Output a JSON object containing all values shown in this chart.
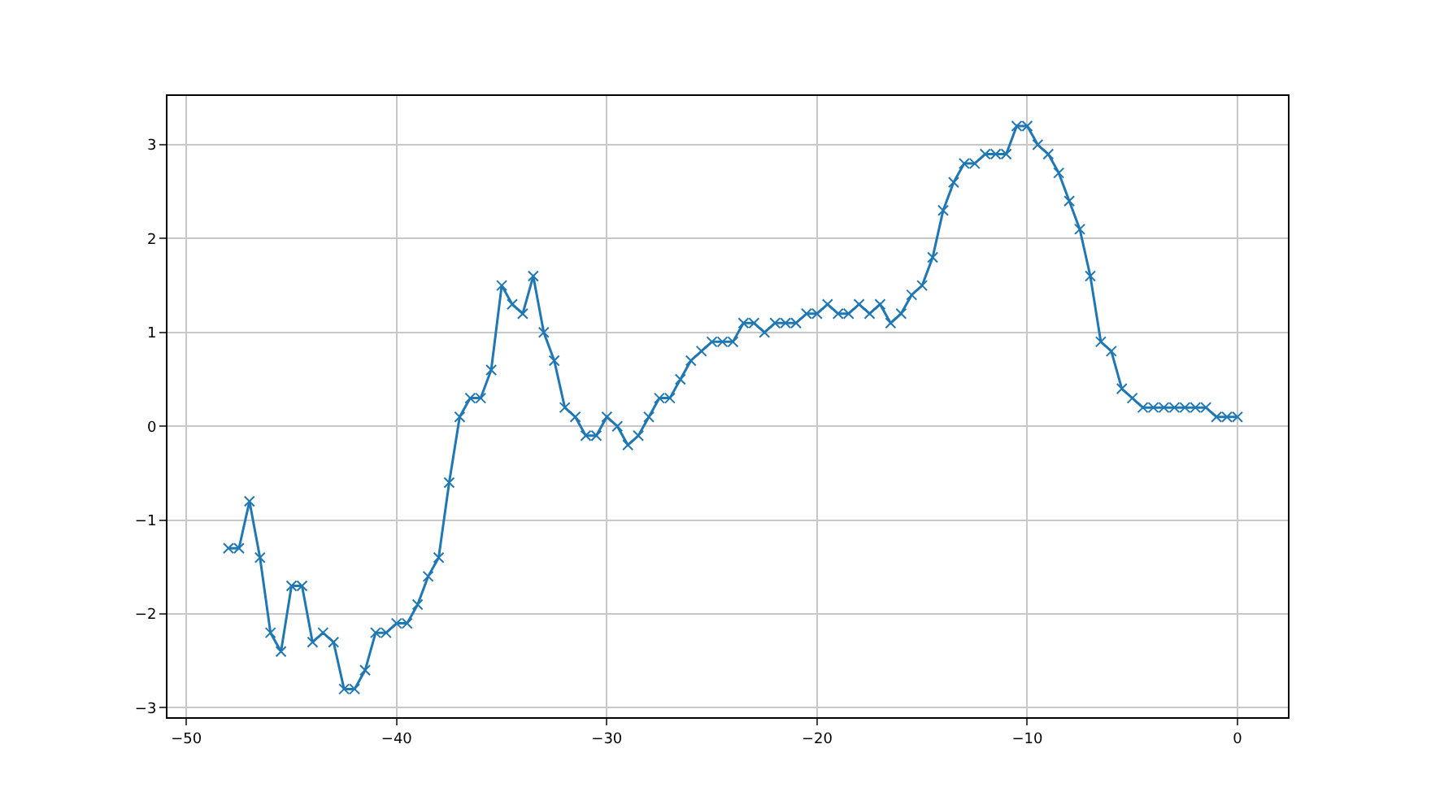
{
  "chart_data": {
    "type": "line",
    "marker": "cross",
    "grid": true,
    "x": [
      -48,
      -47.5,
      -47,
      -46.5,
      -46,
      -45.5,
      -45,
      -44.5,
      -44,
      -43.5,
      -43,
      -42.5,
      -42,
      -41.5,
      -41,
      -40.5,
      -40,
      -39.5,
      -39,
      -38.5,
      -38,
      -37.5,
      -37,
      -36.5,
      -36,
      -35.5,
      -35,
      -34.5,
      -34,
      -33.5,
      -33,
      -32.5,
      -32,
      -31.5,
      -31,
      -30.5,
      -30,
      -29.5,
      -29,
      -28.5,
      -28,
      -27.5,
      -27,
      -26.5,
      -26,
      -25.5,
      -25,
      -24.5,
      -24,
      -23.5,
      -23,
      -22.5,
      -22,
      -21.5,
      -21,
      -20.5,
      -20,
      -19.5,
      -19,
      -18.5,
      -18,
      -17.5,
      -17,
      -16.5,
      -16,
      -15.5,
      -15,
      -14.5,
      -14,
      -13.5,
      -13,
      -12.5,
      -12,
      -11.5,
      -11,
      -10.5,
      -10,
      -9.5,
      -9,
      -8.5,
      -8,
      -7.5,
      -7,
      -6.5,
      -6,
      -5.5,
      -5,
      -4.5,
      -4,
      -3.5,
      -3,
      -2.5,
      -2,
      -1.5,
      -1,
      -0.5,
      0
    ],
    "series": [
      {
        "color": "#1f77b4",
        "values": [
          -1.3,
          -1.3,
          -0.8,
          -1.4,
          -2.2,
          -2.4,
          -1.7,
          -1.7,
          -2.3,
          -2.2,
          -2.3,
          -2.8,
          -2.8,
          -2.6,
          -2.2,
          -2.2,
          -2.1,
          -2.1,
          -1.9,
          -1.6,
          -1.4,
          -0.6,
          0.1,
          0.3,
          0.3,
          0.6,
          1.5,
          1.3,
          1.2,
          1.6,
          1.0,
          0.7,
          0.2,
          0.1,
          -0.1,
          -0.1,
          0.1,
          0.0,
          -0.2,
          -0.1,
          0.1,
          0.3,
          0.3,
          0.5,
          0.7,
          0.8,
          0.9,
          0.9,
          0.9,
          1.1,
          1.1,
          1.0,
          1.1,
          1.1,
          1.1,
          1.2,
          1.2,
          1.3,
          1.2,
          1.2,
          1.3,
          1.2,
          1.3,
          1.1,
          1.2,
          1.4,
          1.5,
          1.8,
          2.3,
          2.6,
          2.8,
          2.8,
          2.9,
          2.9,
          2.9,
          3.2,
          3.2,
          3.0,
          2.9,
          2.7,
          2.4,
          2.1,
          1.6,
          0.9,
          0.8,
          0.4,
          0.3,
          0.2,
          0.2,
          0.2,
          0.2,
          0.2,
          0.2,
          0.2,
          0.1,
          0.1,
          0.1
        ]
      }
    ],
    "xlim": [
      -50.9,
      2.4
    ],
    "ylim": [
      -3.1,
      3.52
    ],
    "xticks": [
      -50,
      -40,
      -30,
      -20,
      -10,
      0
    ],
    "yticks": [
      -3,
      -2,
      -1,
      0,
      1,
      2,
      3
    ]
  }
}
